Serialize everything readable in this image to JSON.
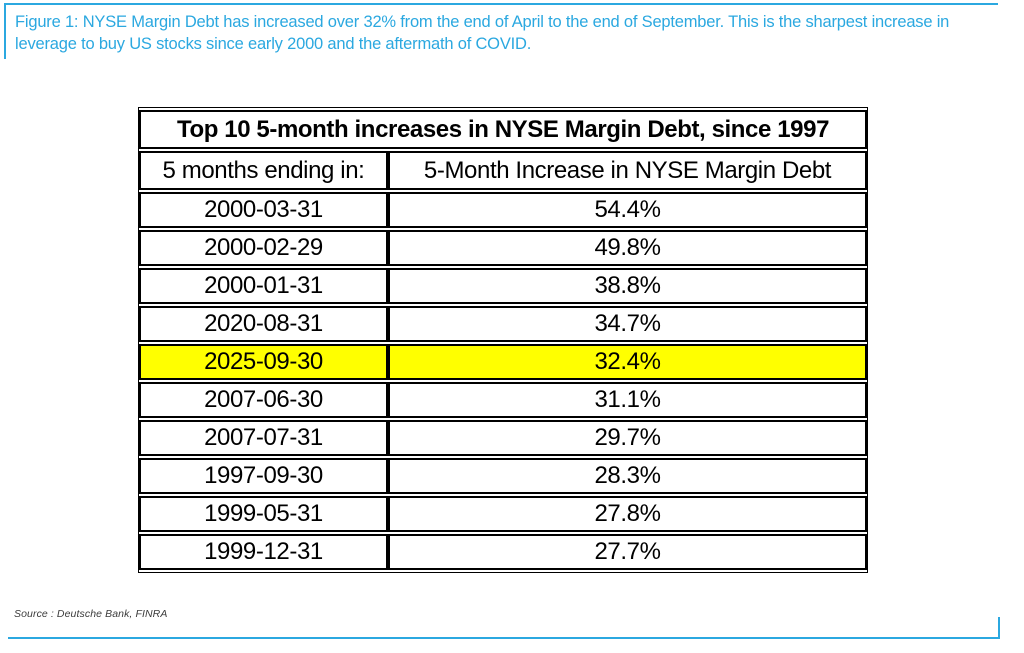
{
  "figure_caption": {
    "text": "Figure 1: NYSE Margin Debt has increased over 32% from the end of April to the end of September. This is the sharpest increase in leverage to buy US stocks since early 2000 and the aftermath of COVID.",
    "accent_color": "#2BA8E0"
  },
  "table": {
    "title": "Top 10 5-month increases in NYSE Margin Debt, since 1997",
    "columns": [
      "5 months ending in:",
      "5-Month Increase in NYSE Margin Debt"
    ],
    "highlight_color": "#FFFF00",
    "rows": [
      {
        "ending": "2000-03-31",
        "increase": "54.4%",
        "highlight": false
      },
      {
        "ending": "2000-02-29",
        "increase": "49.8%",
        "highlight": false
      },
      {
        "ending": "2000-01-31",
        "increase": "38.8%",
        "highlight": false
      },
      {
        "ending": "2020-08-31",
        "increase": "34.7%",
        "highlight": false
      },
      {
        "ending": "2025-09-30",
        "increase": "32.4%",
        "highlight": true
      },
      {
        "ending": "2007-06-30",
        "increase": "31.1%",
        "highlight": false
      },
      {
        "ending": "2007-07-31",
        "increase": "29.7%",
        "highlight": false
      },
      {
        "ending": "1997-09-30",
        "increase": "28.3%",
        "highlight": false
      },
      {
        "ending": "1999-05-31",
        "increase": "27.8%",
        "highlight": false
      },
      {
        "ending": "1999-12-31",
        "increase": "27.7%",
        "highlight": false
      }
    ]
  },
  "source": {
    "text": "Source : Deutsche Bank, FINRA"
  }
}
